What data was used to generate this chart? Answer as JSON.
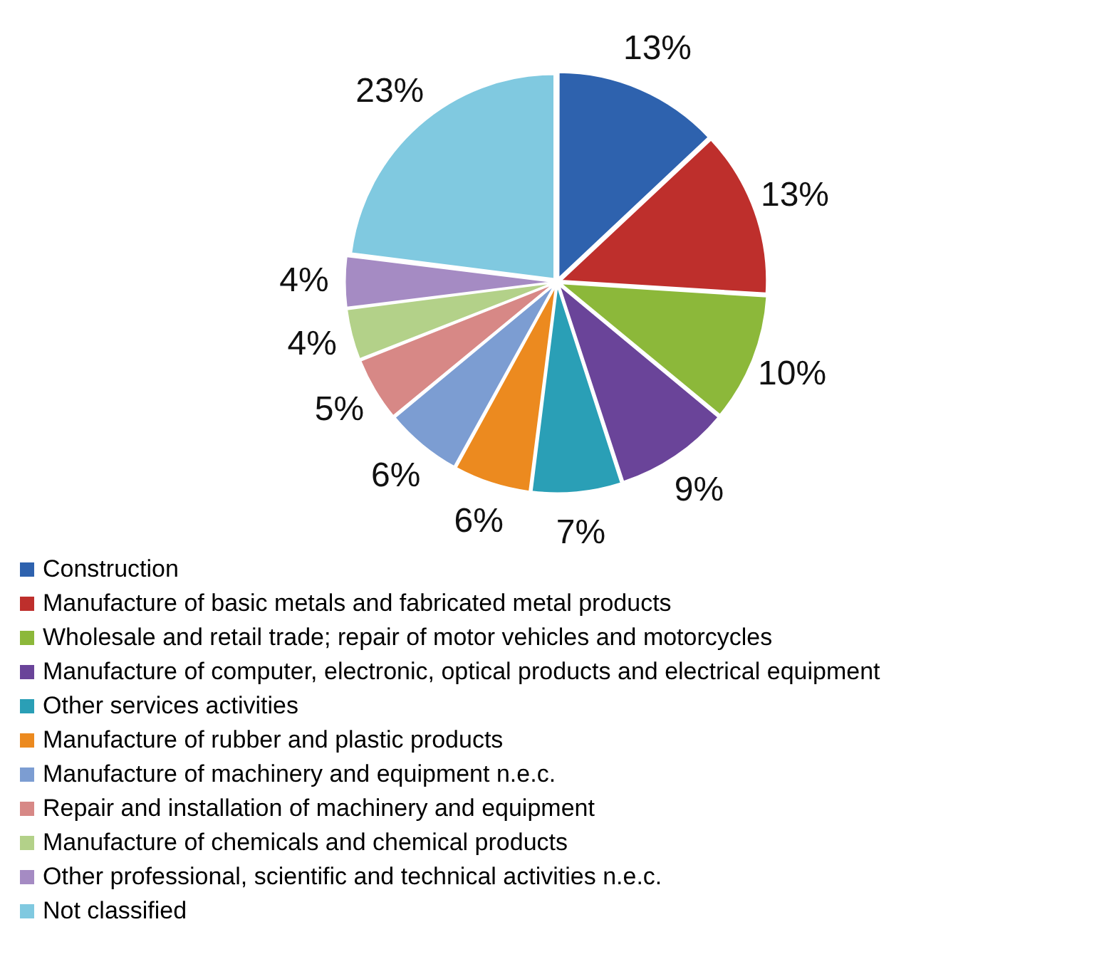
{
  "chart_data": {
    "type": "pie",
    "categories": [
      "Construction",
      "Manufacture of basic metals and fabricated metal products",
      "Wholesale and retail trade; repair of motor vehicles and motorcycles",
      "Manufacture of computer, electronic, optical products and electrical equipment",
      "Other services activities",
      "Manufacture of rubber and plastic products",
      "Manufacture of machinery and equipment n.e.c.",
      "Repair and installation of machinery and equipment",
      "Manufacture of chemicals and chemical products",
      "Other professional, scientific and technical activities n.e.c.",
      "Not classified"
    ],
    "values": [
      13,
      13,
      10,
      9,
      7,
      6,
      6,
      5,
      4,
      4,
      23
    ],
    "value_labels": [
      "13%",
      "13%",
      "10%",
      "9%",
      "7%",
      "6%",
      "6%",
      "5%",
      "4%",
      "4%",
      "23%"
    ],
    "colors": [
      "#2e62ae",
      "#be2f2c",
      "#8cb83a",
      "#6a4499",
      "#2a9fb6",
      "#ec8a1f",
      "#7c9dd2",
      "#d78886",
      "#b3d189",
      "#a58bc3",
      "#80c9e0"
    ],
    "legend": "bottom"
  }
}
